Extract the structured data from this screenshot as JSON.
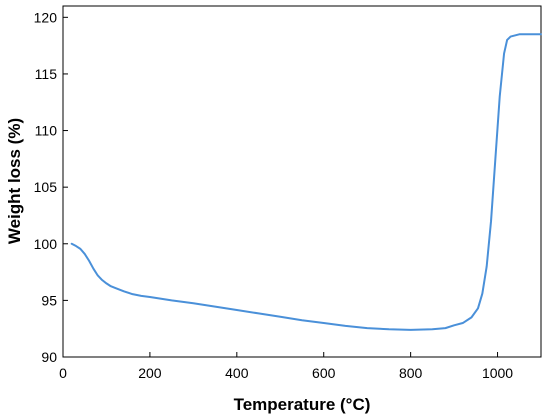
{
  "chart_data": {
    "type": "line",
    "title": "",
    "xlabel": "Temperature (°C)",
    "ylabel": "Weight loss (%)",
    "xlim": [
      0,
      1100
    ],
    "ylim": [
      90,
      121
    ],
    "x_ticks": [
      0,
      200,
      400,
      600,
      800,
      1000
    ],
    "y_ticks": [
      90,
      95,
      100,
      105,
      110,
      115,
      120
    ],
    "grid": false,
    "legend": "none",
    "series": [
      {
        "color": "#4a90d9",
        "x": [
          20,
          30,
          40,
          50,
          60,
          70,
          80,
          90,
          100,
          110,
          120,
          140,
          160,
          180,
          200,
          250,
          300,
          350,
          400,
          450,
          500,
          550,
          600,
          650,
          700,
          750,
          800,
          850,
          880,
          900,
          920,
          940,
          955,
          965,
          975,
          985,
          995,
          1005,
          1015,
          1022,
          1030,
          1040,
          1050,
          1075,
          1100
        ],
        "y": [
          100.0,
          99.8,
          99.55,
          99.1,
          98.5,
          97.8,
          97.2,
          96.8,
          96.5,
          96.25,
          96.1,
          95.8,
          95.55,
          95.4,
          95.3,
          95.0,
          94.75,
          94.45,
          94.15,
          93.85,
          93.55,
          93.25,
          93.0,
          92.75,
          92.55,
          92.45,
          92.4,
          92.45,
          92.55,
          92.8,
          93.0,
          93.5,
          94.3,
          95.6,
          98.0,
          102.0,
          107.5,
          113.0,
          116.8,
          118.0,
          118.3,
          118.4,
          118.5,
          118.5,
          118.5
        ]
      }
    ]
  }
}
